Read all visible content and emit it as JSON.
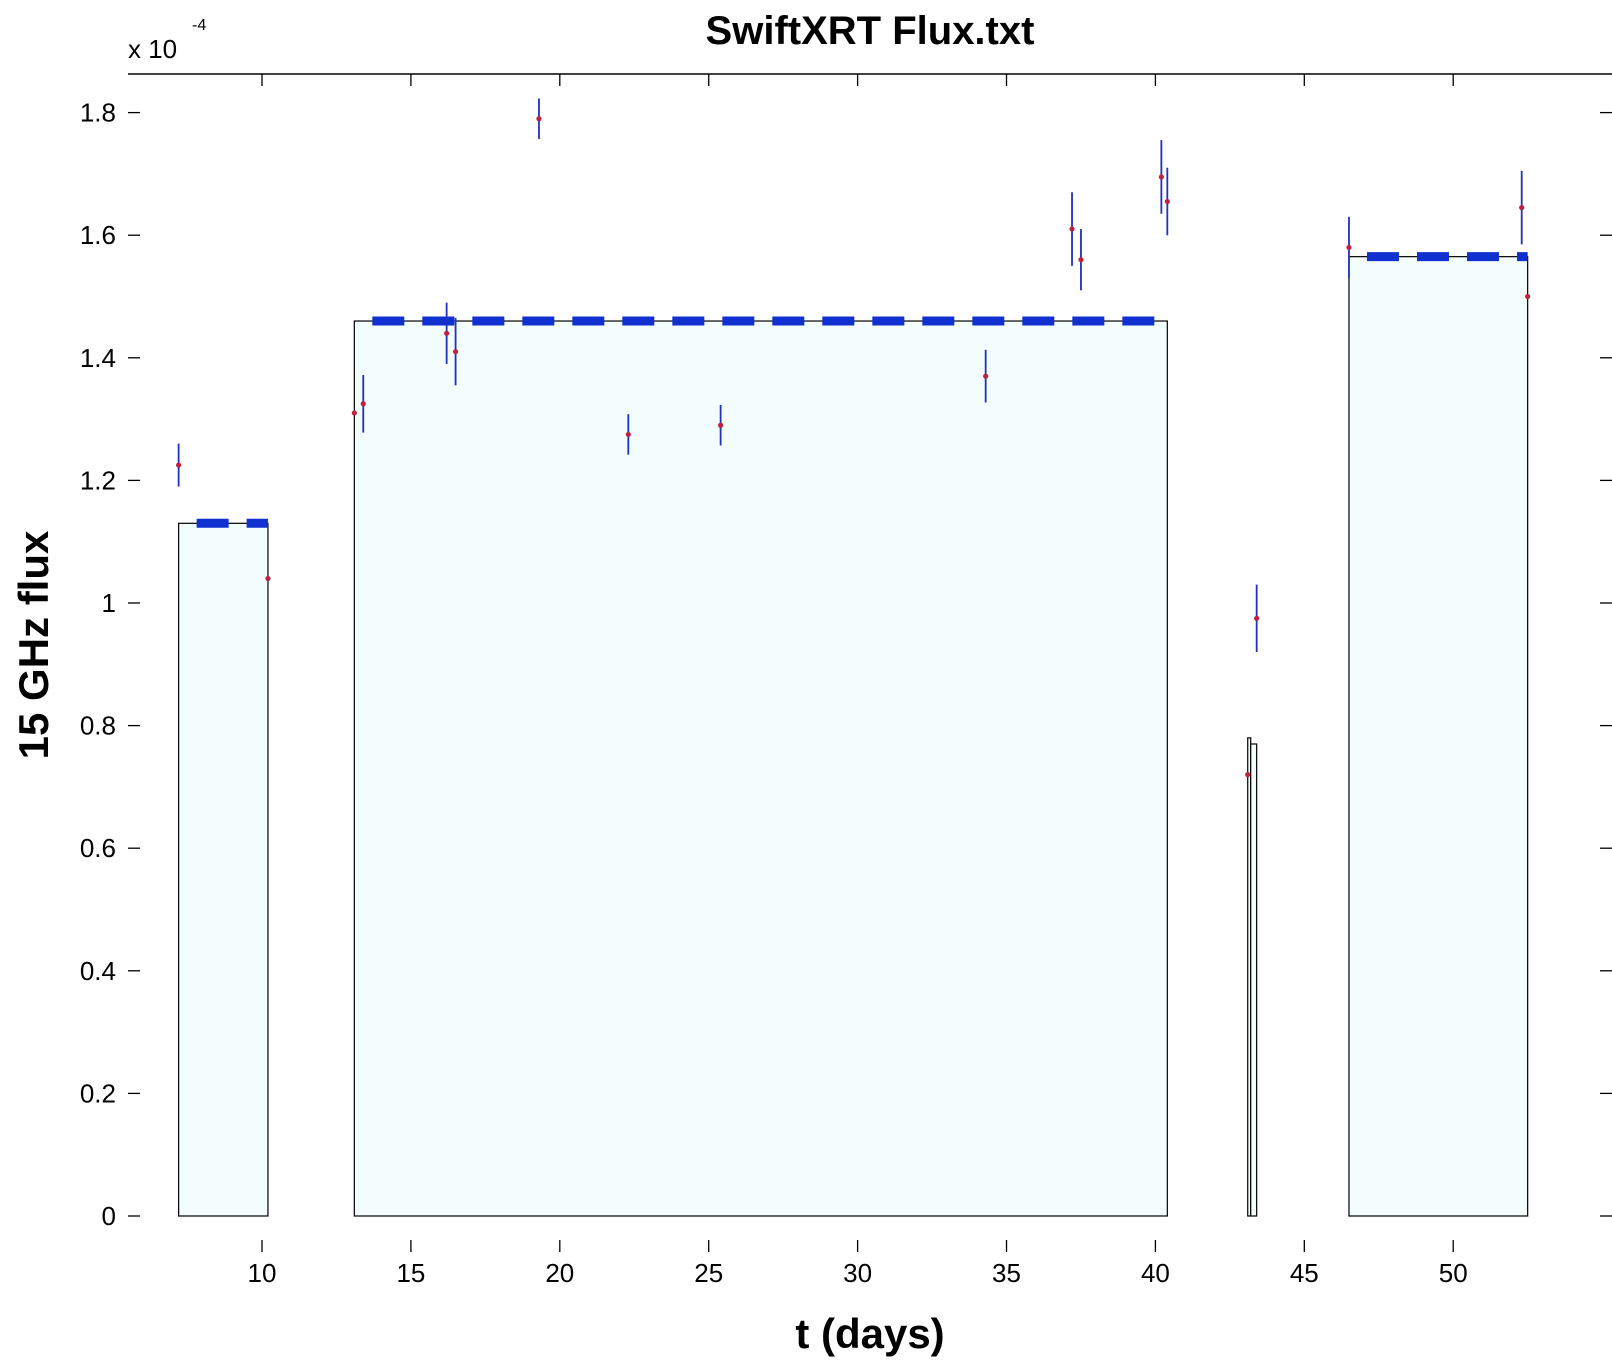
{
  "chart_data": {
    "type": "scatter",
    "title": "SwiftXRT Flux.txt",
    "xlabel": "t (days)",
    "ylabel": "15 GHz flux",
    "y_multiplier": {
      "base": "x 10",
      "exponent": "-4"
    },
    "xlim": [
      5.5,
      55.0
    ],
    "ylim": [
      0,
      1.87
    ],
    "xticks": [
      10,
      15,
      20,
      25,
      30,
      35,
      40,
      45,
      50
    ],
    "yticks": [
      0,
      0.2,
      0.4,
      0.6,
      0.8,
      1.0,
      1.2,
      1.4,
      1.6,
      1.8
    ],
    "ytick_labels": [
      "0",
      "0.2",
      "0.4",
      "0.6",
      "0.8",
      "1",
      "1.2",
      "1.4",
      "1.6",
      "1.8"
    ],
    "grid": false,
    "colors": {
      "block_fill": "#f3fdfc",
      "block_edge": "#000000",
      "mean_line": "#1030d0",
      "errorbar": "#2030c0",
      "point": "#c02040"
    },
    "blocks": [
      {
        "x_start": 7.2,
        "x_end": 10.2,
        "value": 1.13,
        "show_mean": true
      },
      {
        "x_start": 13.1,
        "x_end": 40.4,
        "value": 1.46,
        "show_mean": true
      },
      {
        "x_start": 43.1,
        "x_end": 43.2,
        "value": 0.78,
        "show_mean": false
      },
      {
        "x_start": 43.2,
        "x_end": 43.4,
        "value": 0.77,
        "show_mean": false
      },
      {
        "x_start": 46.5,
        "x_end": 52.5,
        "value": 1.565,
        "show_mean": true
      }
    ],
    "points": [
      {
        "x": 7.2,
        "y": 1.225,
        "err": 0.035
      },
      {
        "x": 10.2,
        "y": 1.04,
        "err": 0
      },
      {
        "x": 13.1,
        "y": 1.31,
        "err": 0
      },
      {
        "x": 13.4,
        "y": 1.325,
        "err": 0.047
      },
      {
        "x": 16.2,
        "y": 1.44,
        "err": 0.05
      },
      {
        "x": 16.5,
        "y": 1.41,
        "err": 0.055
      },
      {
        "x": 19.3,
        "y": 1.79,
        "err": 0.033
      },
      {
        "x": 22.3,
        "y": 1.275,
        "err": 0.033
      },
      {
        "x": 25.4,
        "y": 1.29,
        "err": 0.033
      },
      {
        "x": 34.3,
        "y": 1.37,
        "err": 0.043
      },
      {
        "x": 37.2,
        "y": 1.61,
        "err": 0.06
      },
      {
        "x": 37.5,
        "y": 1.56,
        "err": 0.05
      },
      {
        "x": 40.2,
        "y": 1.695,
        "err": 0.06
      },
      {
        "x": 40.4,
        "y": 1.655,
        "err": 0.055
      },
      {
        "x": 43.1,
        "y": 0.72,
        "err": 0
      },
      {
        "x": 43.4,
        "y": 0.975,
        "err": 0.055
      },
      {
        "x": 46.5,
        "y": 1.58,
        "err": 0.05
      },
      {
        "x": 52.3,
        "y": 1.645,
        "err": 0.06
      },
      {
        "x": 52.5,
        "y": 1.5,
        "err": 0
      }
    ]
  }
}
